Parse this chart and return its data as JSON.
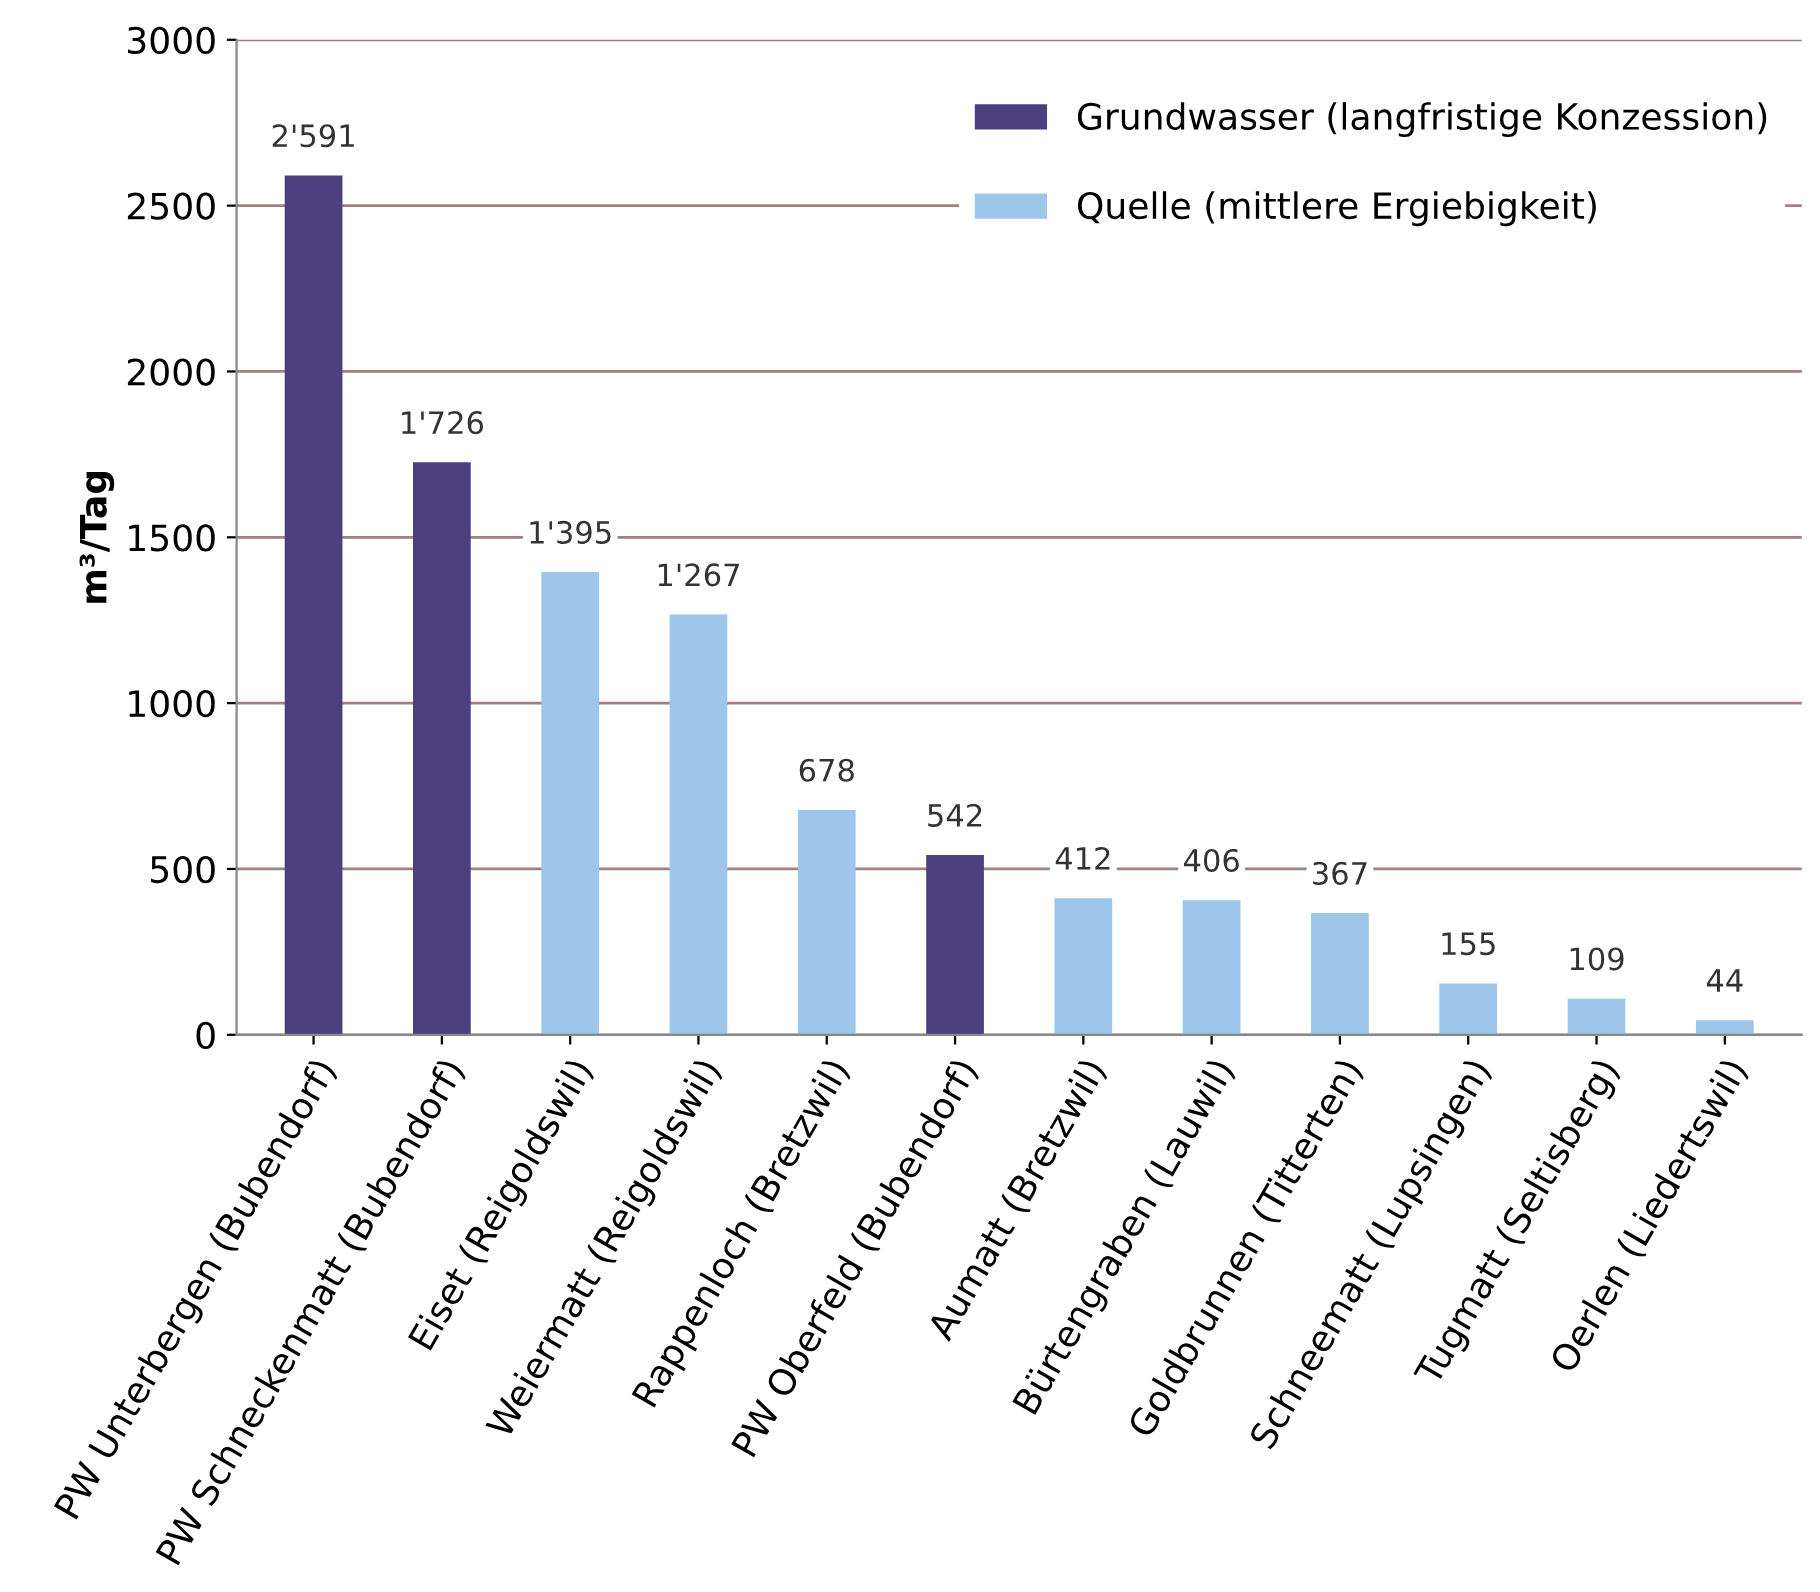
{
  "chart_data": {
    "type": "bar",
    "ylabel": "m³/Tag",
    "categories": [
      "PW Unterbergen (Bubendorf)",
      "PW Schneckenmatt (Bubendorf)",
      "Eiset (Reigoldswil)",
      "Weiermatt (Reigoldswil)",
      "Rappenloch (Bretzwil)",
      "PW Oberfeld (Bubendorf)",
      "Aumatt (Bretzwil)",
      "Bürtengraben (Lauwil)",
      "Goldbrunnen (Titterten)",
      "Schneematt (Lupsingen)",
      "Tugmatt (Seltisberg)",
      "Oerlen (Liedertswil)"
    ],
    "series": [
      {
        "name": "Grundwasser (langfristige Konzession)",
        "color": "#4b3f7d",
        "values": [
          2591,
          1726,
          null,
          null,
          null,
          542,
          null,
          null,
          null,
          null,
          null,
          null
        ],
        "value_labels": [
          "2'591",
          "1'726",
          null,
          null,
          null,
          "542",
          null,
          null,
          null,
          null,
          null,
          null
        ]
      },
      {
        "name": "Quelle (mittlere Ergiebigkeit)",
        "color": "#9dc6ea",
        "values": [
          null,
          null,
          1395,
          1267,
          678,
          null,
          412,
          406,
          367,
          155,
          109,
          44
        ],
        "value_labels": [
          null,
          null,
          "1'395",
          "1'267",
          "678",
          null,
          "412",
          "406",
          "367",
          "155",
          "109",
          "44"
        ]
      }
    ],
    "ylim": [
      0,
      3000
    ],
    "yticks": [
      0,
      500,
      1000,
      1500,
      2000,
      2500,
      3000
    ],
    "grid": "y",
    "legend": "top right"
  }
}
